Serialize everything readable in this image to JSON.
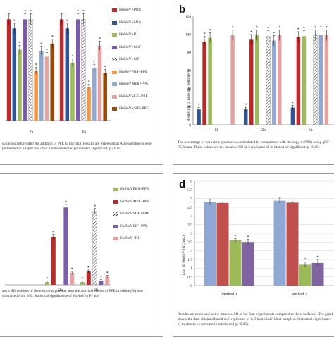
{
  "panels": {
    "a": {
      "caption": "solutions before/after the addition of PPE (5 mg/mL). Results are expressed as All experiments were performed in 3 replicates of in 3 independent experiments l significant: p <0.05."
    },
    "b": {
      "label": "b",
      "caption": "The percentage of norovirus genome was calculated by comparison with the copy n (PBS) using qRT-PCR data. These values are the means ± SD of 3 replicates of in Statistical significant: p <0.05."
    },
    "c": {
      "caption": "ans ± SD residues of the norovirus genome after the antiviral effects of PPE in esidue (%) was subtracted from 100. Statistical significance of HuNoV in PJ and"
    },
    "d": {
      "label": "d",
      "caption": "Results are expressed as the means ± SD of the four experiments compared to the u surfaces). The graph shows the data obtained based on 3 replicates of in 3 indep individual samples). Statistical significance of treatment vs untreated controls and (p<0.05)."
    }
  },
  "chart_data": [
    {
      "id": "a",
      "type": "bar",
      "categories": [
        "2h",
        "6h"
      ],
      "series": [
        {
          "name": "HuNoV+PBS",
          "color": "#c0292a",
          "values": [
            100,
            100
          ],
          "sig": [
            false,
            false
          ]
        },
        {
          "name": "HuNoV+Milk",
          "color": "#2f5597",
          "values": [
            91,
            91
          ],
          "sig": [
            true,
            true
          ]
        },
        {
          "name": "HuNoV+PJ",
          "color": "#9bbb59",
          "values": [
            70,
            57
          ],
          "sig": [
            true,
            true
          ]
        },
        {
          "name": "HuNoV+SGF",
          "color": "#7c5cae",
          "values": [
            100,
            100
          ],
          "sig": [
            true,
            true
          ]
        },
        {
          "name": "HuNoV+SIF",
          "color": "hatch",
          "values": [
            100,
            100
          ],
          "sig": [
            true,
            true
          ]
        },
        {
          "name": "HuNoVPBS+PPE",
          "color": "#f79646",
          "values": [
            49,
            33
          ],
          "sig": [
            true,
            true
          ]
        },
        {
          "name": "HuNoVMilk+PPE",
          "color": "#8fa9d4",
          "values": [
            69,
            52
          ],
          "sig": [
            true,
            true
          ]
        },
        {
          "name": "HuNoVSGF+PPE",
          "color": "#e6a1a1",
          "values": [
            63,
            74
          ],
          "sig": [
            true,
            true
          ]
        },
        {
          "name": "HuNoV+SIF+PPE",
          "color": "#984807",
          "values": [
            76,
            47
          ],
          "sig": [
            true,
            true
          ]
        }
      ],
      "ylim": [
        0,
        110
      ],
      "grid": false,
      "legend": "right"
    },
    {
      "id": "b",
      "type": "bar",
      "ylabel": "Reduction of noro irul genome(%)",
      "categories": [
        "1h",
        "2h",
        "6h"
      ],
      "yticks": [
        "0",
        "20",
        "40",
        "60",
        "80",
        "100",
        "120"
      ],
      "series": [
        {
          "color": "#2f5597",
          "values": [
            17,
            17,
            19
          ]
        },
        {
          "color": "#c0292a",
          "values": [
            92,
            94,
            97
          ]
        },
        {
          "color": "#9bbb59",
          "values": [
            96,
            99,
            98
          ]
        },
        {
          "color": "#7c5cae",
          "values": [
            0,
            0,
            0
          ]
        },
        {
          "color": "hatch",
          "values": [
            0,
            98,
            99
          ]
        },
        {
          "color": "#8fa9d4",
          "values": [
            0,
            93,
            99
          ]
        },
        {
          "color": "#e6a1a1",
          "values": [
            99,
            99,
            99
          ]
        }
      ],
      "ylim": [
        0,
        120
      ],
      "grid": false
    },
    {
      "id": "c",
      "type": "bar",
      "categories": [
        "",
        "2h",
        "6h"
      ],
      "series": [
        {
          "name": "HuNoVPBS+PPE",
          "color": "#9bbb59",
          "values": [
            0,
            2,
            2
          ]
        },
        {
          "name": "HuNoVMilk+PPE",
          "color": "#c0292a",
          "values": [
            0,
            36,
            10
          ]
        },
        {
          "name": "HuNoVSGF+PPE",
          "color": "hatch",
          "values": [
            0,
            0,
            55
          ]
        },
        {
          "name": "HuNoVSIF+PPE",
          "color": "#7c5cae",
          "values": [
            0,
            58,
            3
          ]
        },
        {
          "name": "HuNoV+PJ",
          "color": "#e6a1a1",
          "values": [
            0,
            9,
            6
          ]
        }
      ],
      "ylim": [
        0,
        65
      ],
      "grid": false,
      "legend": "right"
    },
    {
      "id": "d",
      "type": "bar",
      "ylabel": "Log 10 HuNoV (GC/mL)",
      "categories": [
        "Method 1",
        "Method 2"
      ],
      "yticks": [
        "0",
        "0.5",
        "1",
        "1.5",
        "2",
        "2.5",
        "3",
        "3.5",
        "4",
        "4.5",
        "5",
        "5.5",
        "6"
      ],
      "series": [
        {
          "color": "#8fa9d4",
          "values": [
            4.8,
            4.88
          ],
          "err": [
            0.15,
            0.15
          ],
          "sig": [
            false,
            false
          ]
        },
        {
          "color": "#c0504d",
          "values": [
            4.75,
            4.77
          ],
          "err": [
            0.05,
            0.05
          ],
          "sig": [
            false,
            false
          ]
        },
        {
          "color": "#9bbb59",
          "values": [
            2.6,
            1.2
          ],
          "err": [
            0.1,
            0.15
          ],
          "sig": [
            true,
            true
          ]
        },
        {
          "color": "#8064a2",
          "values": [
            2.5,
            1.3
          ],
          "err": [
            0.15,
            0.2
          ],
          "sig": [
            true,
            true
          ]
        }
      ],
      "ylim": [
        0,
        6
      ],
      "grid": true
    }
  ]
}
